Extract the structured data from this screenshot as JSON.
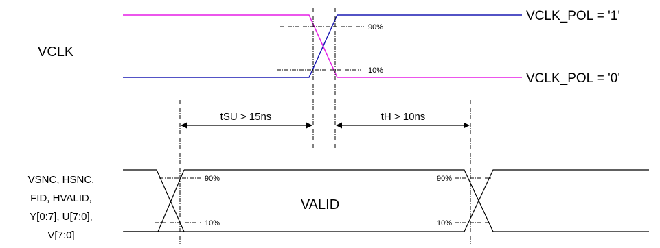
{
  "signals": {
    "clock_name": "VCLK",
    "data_name_lines": [
      "VSNC, HSNC,",
      "FID, HVALID,",
      "Y[0:7], U[7:0],",
      "V[7:0]"
    ]
  },
  "polarity": {
    "pol1_label": "VCLK_POL = '1'",
    "pol0_label": "VCLK_POL = '0'",
    "pol1_color": "#1a1ab4",
    "pol0_color": "#e61ee6"
  },
  "thresholds": {
    "high": "90%",
    "low": "10%"
  },
  "timing": {
    "setup": "tSU > 15ns",
    "hold": "tH > 10ns"
  },
  "data_bus": {
    "valid_label": "VALID"
  }
}
